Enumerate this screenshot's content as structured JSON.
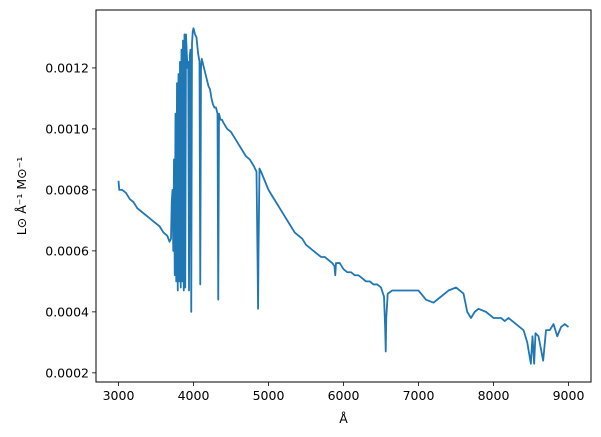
{
  "chart_data": {
    "type": "line",
    "title": "",
    "xlabel": "Å",
    "ylabel": "L⊙ Å⁻¹ M⊙⁻¹",
    "xlim": [
      2700,
      9300
    ],
    "ylim": [
      0.00017,
      0.00139
    ],
    "x_ticks": [
      3000,
      4000,
      5000,
      6000,
      7000,
      8000,
      9000
    ],
    "x_tick_labels": [
      "3000",
      "4000",
      "5000",
      "6000",
      "7000",
      "8000",
      "9000"
    ],
    "y_ticks": [
      0.0002,
      0.0004,
      0.0006,
      0.0008,
      0.001,
      0.0012
    ],
    "y_tick_labels": [
      "0.0002",
      "0.0004",
      "0.0006",
      "0.0008",
      "0.0010",
      "0.0012"
    ],
    "grid": false,
    "legend": "none",
    "series": [
      {
        "color": "#1f77b4",
        "x": [
          3000,
          3010,
          3050,
          3100,
          3150,
          3200,
          3250,
          3300,
          3350,
          3400,
          3450,
          3500,
          3550,
          3600,
          3650,
          3680,
          3700,
          3710,
          3720,
          3730,
          3740,
          3750,
          3760,
          3770,
          3780,
          3790,
          3800,
          3810,
          3820,
          3830,
          3840,
          3850,
          3860,
          3870,
          3880,
          3890,
          3900,
          3910,
          3920,
          3930,
          3940,
          3950,
          3960,
          3970,
          3980,
          3990,
          4000,
          4020,
          4040,
          4060,
          4080,
          4090,
          4100,
          4110,
          4120,
          4140,
          4160,
          4180,
          4200,
          4220,
          4240,
          4260,
          4280,
          4300,
          4320,
          4330,
          4340,
          4350,
          4360,
          4380,
          4400,
          4450,
          4500,
          4550,
          4600,
          4650,
          4700,
          4750,
          4800,
          4840,
          4855,
          4861,
          4867,
          4880,
          4900,
          4950,
          5000,
          5050,
          5100,
          5150,
          5200,
          5250,
          5300,
          5350,
          5400,
          5450,
          5500,
          5550,
          5600,
          5650,
          5700,
          5750,
          5800,
          5850,
          5880,
          5890,
          5900,
          5950,
          6000,
          6050,
          6100,
          6150,
          6200,
          6250,
          6300,
          6350,
          6400,
          6450,
          6500,
          6540,
          6555,
          6563,
          6570,
          6590,
          6650,
          6700,
          6800,
          6900,
          7000,
          7100,
          7200,
          7300,
          7400,
          7500,
          7600,
          7650,
          7700,
          7750,
          7800,
          7900,
          8000,
          8100,
          8150,
          8200,
          8300,
          8400,
          8450,
          8498,
          8520,
          8542,
          8560,
          8600,
          8662,
          8700,
          8750,
          8800,
          8850,
          8900,
          8950,
          9000
        ],
        "y": [
          0.00083,
          0.0008,
          0.0008,
          0.00079,
          0.00077,
          0.00076,
          0.00074,
          0.00073,
          0.00072,
          0.00071,
          0.0007,
          0.00069,
          0.00068,
          0.00066,
          0.00065,
          0.00063,
          0.00064,
          0.00076,
          0.0008,
          0.0006,
          0.0009,
          0.00052,
          0.00105,
          0.0005,
          0.00115,
          0.00047,
          0.00118,
          0.0005,
          0.00122,
          0.00048,
          0.00126,
          0.0005,
          0.00129,
          0.00047,
          0.00131,
          0.00048,
          0.00131,
          0.00125,
          0.0012,
          0.00122,
          0.00047,
          0.00124,
          0.00126,
          0.0004,
          0.00128,
          0.00132,
          0.00133,
          0.00131,
          0.0013,
          0.00125,
          0.00122,
          0.00049,
          0.0012,
          0.00123,
          0.00122,
          0.0012,
          0.00118,
          0.00116,
          0.00114,
          0.00113,
          0.0011,
          0.00108,
          0.00107,
          0.00107,
          0.00105,
          0.00044,
          0.00105,
          0.00104,
          0.00103,
          0.00103,
          0.00102,
          0.001,
          0.00099,
          0.00097,
          0.00095,
          0.00093,
          0.00091,
          0.0009,
          0.00088,
          0.00086,
          0.00055,
          0.00041,
          0.0006,
          0.00087,
          0.00086,
          0.00083,
          0.0008,
          0.00078,
          0.00076,
          0.00074,
          0.00072,
          0.0007,
          0.00068,
          0.00066,
          0.00065,
          0.00064,
          0.00062,
          0.00061,
          0.0006,
          0.00059,
          0.00058,
          0.00058,
          0.00057,
          0.00056,
          0.00055,
          0.00052,
          0.00056,
          0.00056,
          0.00054,
          0.00053,
          0.00053,
          0.00052,
          0.00052,
          0.00051,
          0.0005,
          0.0005,
          0.00049,
          0.00049,
          0.00048,
          0.00045,
          0.00035,
          0.00027,
          0.00038,
          0.00046,
          0.00047,
          0.00047,
          0.00047,
          0.00047,
          0.00047,
          0.00044,
          0.00043,
          0.00045,
          0.00047,
          0.00048,
          0.00046,
          0.0004,
          0.00038,
          0.0004,
          0.00041,
          0.0004,
          0.00038,
          0.00038,
          0.00037,
          0.00038,
          0.00036,
          0.00034,
          0.0003,
          0.00023,
          0.00032,
          0.00023,
          0.00033,
          0.00032,
          0.00024,
          0.00034,
          0.00034,
          0.00036,
          0.00032,
          0.00035,
          0.00036,
          0.00035
        ]
      }
    ]
  }
}
